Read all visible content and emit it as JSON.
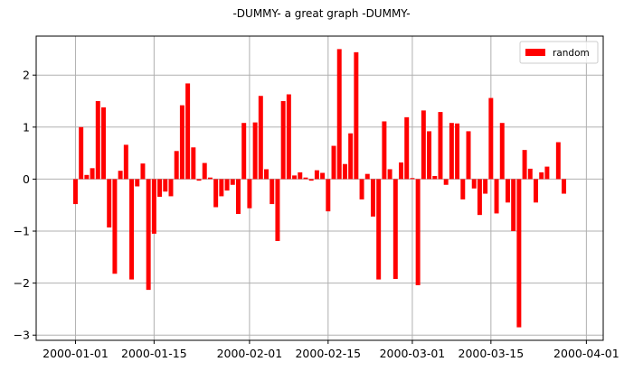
{
  "chart_data": {
    "type": "bar",
    "title": "-DUMMY- a great graph -DUMMY-",
    "xlabel": "",
    "ylabel": "",
    "x_axis": "date",
    "x_start": "2000-01-01",
    "x_end": "2000-03-29",
    "xlim": [
      "1999-12-25",
      "2000-04-04"
    ],
    "ylim": [
      -3.1,
      2.75
    ],
    "xticks": [
      "2000-01-01",
      "2000-01-15",
      "2000-02-01",
      "2000-02-15",
      "2000-03-01",
      "2000-03-15",
      "2000-04-01"
    ],
    "yticks": [
      2,
      1,
      0,
      -1,
      -2,
      -3
    ],
    "ytick_labels": [
      "2",
      "1",
      "0",
      "−1",
      "−2",
      "−3"
    ],
    "grid": true,
    "legend": {
      "position": "top-right",
      "entries": [
        "random"
      ]
    },
    "color": "#ff0000",
    "series": [
      {
        "name": "random",
        "values": [
          -0.48,
          1.0,
          0.08,
          0.21,
          1.5,
          1.38,
          -0.93,
          -1.82,
          0.16,
          0.66,
          -1.93,
          -0.14,
          0.3,
          -2.13,
          -1.05,
          -0.34,
          -0.24,
          -0.33,
          0.54,
          1.42,
          1.84,
          0.61,
          -0.03,
          0.31,
          0.03,
          -0.54,
          -0.33,
          -0.22,
          -0.11,
          -0.67,
          1.08,
          -0.56,
          1.09,
          1.6,
          0.19,
          -0.48,
          -1.19,
          1.5,
          1.63,
          0.07,
          0.13,
          0.03,
          -0.03,
          0.17,
          0.12,
          -0.62,
          0.64,
          2.5,
          0.29,
          0.88,
          2.44,
          -0.39,
          0.1,
          -0.72,
          -1.93,
          1.11,
          0.19,
          -1.92,
          0.32,
          1.19,
          0.02,
          -2.04,
          1.32,
          0.92,
          0.06,
          1.29,
          -0.11,
          1.08,
          1.07,
          -0.39,
          0.92,
          -0.18,
          -0.69,
          -0.28,
          1.56,
          -0.66,
          1.08,
          -0.45,
          -1.0,
          -2.85,
          0.56,
          0.2,
          -0.45,
          0.13,
          0.24,
          0.0,
          0.71,
          -0.28
        ]
      }
    ]
  }
}
